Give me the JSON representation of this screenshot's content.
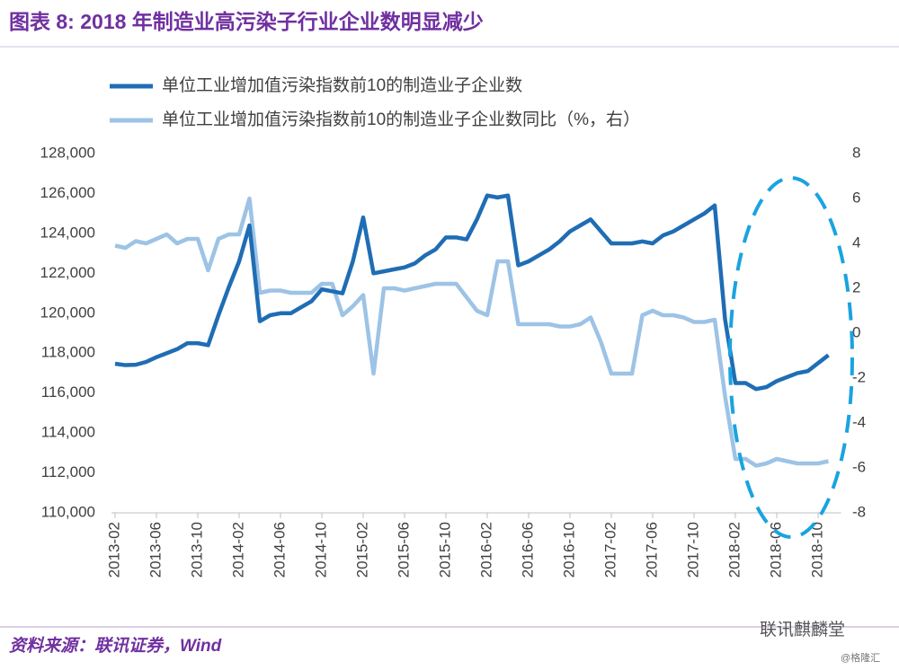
{
  "chart_data": {
    "type": "line",
    "title": "图表 8: 2018 年制造业高污染子行业企业数明显减少",
    "source": "资料来源：联讯证券，Wind",
    "watermark": "联讯麒麟堂",
    "watermark2": "@格隆汇",
    "categories": [
      "2013-02",
      null,
      null,
      null,
      "2013-06",
      null,
      null,
      null,
      "2013-10",
      null,
      null,
      null,
      "2014-02",
      null,
      null,
      null,
      "2014-06",
      null,
      null,
      null,
      "2014-10",
      null,
      null,
      null,
      "2015-02",
      null,
      null,
      null,
      "2015-06",
      null,
      null,
      null,
      "2015-10",
      null,
      null,
      null,
      "2016-02",
      null,
      null,
      null,
      "2016-06",
      null,
      null,
      null,
      "2016-10",
      null,
      null,
      null,
      "2017-02",
      null,
      null,
      null,
      "2017-06",
      null,
      null,
      null,
      "2017-10",
      null,
      null,
      null,
      "2018-02",
      null,
      null,
      null,
      "2018-06",
      null,
      null,
      null,
      "2018-10",
      null
    ],
    "series": [
      {
        "name": "单位工业增加值污染指数前10的制造业子企业数",
        "color": "#1f6db4",
        "values": [
          117470,
          117400,
          117420,
          117560,
          117800,
          118000,
          118200,
          118500,
          118500,
          118400,
          119900,
          121300,
          122600,
          124400,
          119600,
          119900,
          120000,
          120000,
          120300,
          120600,
          121200,
          121100,
          121000,
          122600,
          124800,
          122000,
          122100,
          122200,
          122300,
          122500,
          122900,
          123200,
          123800,
          123800,
          123700,
          124700,
          125900,
          125800,
          125900,
          122400,
          122600,
          122900,
          123200,
          123600,
          124100,
          124400,
          124700,
          124100,
          123500,
          123500,
          123500,
          123600,
          123500,
          123900,
          124100,
          124400,
          124700,
          125000,
          125400,
          119700,
          116500,
          116500,
          116200,
          116300,
          116600,
          116800,
          117000,
          117100,
          117500,
          117900
        ]
      },
      {
        "name": "单位工业增加值污染指数前10的制造业子企业数同比（%，右）",
        "color": "#9dc3e6",
        "axis": "y2",
        "values": [
          3.9,
          3.8,
          4.1,
          4.0,
          4.2,
          4.4,
          4.0,
          4.2,
          4.2,
          2.8,
          4.2,
          4.4,
          4.4,
          6.0,
          1.8,
          1.9,
          1.9,
          1.8,
          1.8,
          1.8,
          2.2,
          2.2,
          0.8,
          1.2,
          1.7,
          -1.8,
          2.0,
          2.0,
          1.9,
          2.0,
          2.1,
          2.2,
          2.2,
          2.2,
          1.6,
          1.0,
          0.8,
          3.2,
          3.2,
          0.4,
          0.4,
          0.4,
          0.4,
          0.3,
          0.3,
          0.4,
          0.7,
          -0.4,
          -1.8,
          -1.8,
          -1.8,
          0.8,
          1.0,
          0.8,
          0.8,
          0.7,
          0.5,
          0.5,
          0.6,
          -2.8,
          -5.6,
          -5.6,
          -5.9,
          -5.8,
          -5.6,
          -5.7,
          -5.8,
          -5.8,
          -5.8,
          -5.7
        ]
      }
    ],
    "ylim": [
      110000,
      128000
    ],
    "yticks": [
      {
        "value": 110000,
        "label": "110,000"
      },
      {
        "value": 112000,
        "label": "112,000"
      },
      {
        "value": 114000,
        "label": "114,000"
      },
      {
        "value": 116000,
        "label": "116,000"
      },
      {
        "value": 118000,
        "label": "118,000"
      },
      {
        "value": 120000,
        "label": "120,000"
      },
      {
        "value": 122000,
        "label": "122,000"
      },
      {
        "value": 124000,
        "label": "124,000"
      },
      {
        "value": 126000,
        "label": "126,000"
      },
      {
        "value": 128000,
        "label": "128,000"
      }
    ],
    "y2lim": [
      -8,
      8
    ],
    "y2ticks": [
      -8,
      -6,
      -4,
      -2,
      0,
      2,
      4,
      6,
      8
    ]
  }
}
